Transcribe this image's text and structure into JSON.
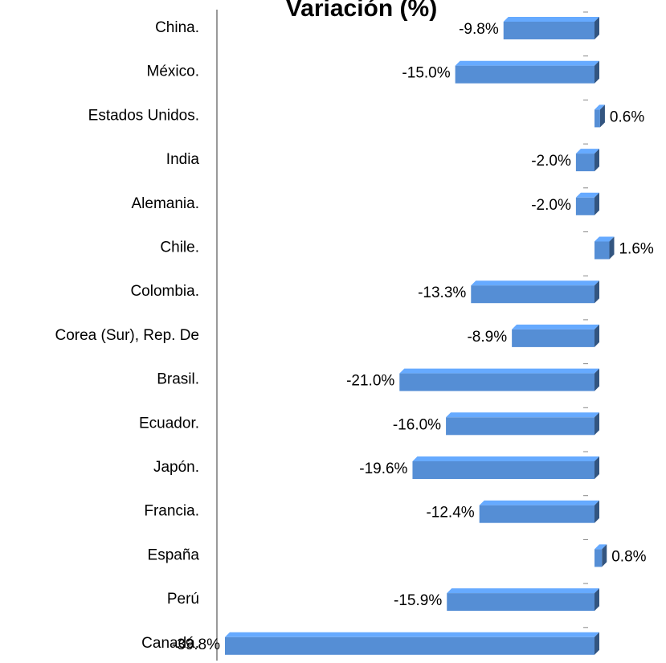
{
  "chart_data": {
    "type": "bar",
    "orientation": "horizontal",
    "title": "Variación (%)",
    "categories": [
      "China.",
      "México.",
      "Estados Unidos.",
      "India",
      "Alemania.",
      "Chile.",
      "Colombia.",
      "Corea (Sur), Rep. De",
      "Brasil.",
      "Ecuador.",
      "Japón.",
      "Francia.",
      "España",
      "Perú",
      "Canadá."
    ],
    "values": [
      -9.8,
      -15.0,
      0.6,
      -2.0,
      -2.0,
      1.6,
      -13.3,
      -8.9,
      -21.0,
      -16.0,
      -19.6,
      -12.4,
      0.8,
      -15.9,
      -39.8
    ],
    "value_labels": [
      "-9.8%",
      "-15.0%",
      "0.6%",
      "-2.0%",
      "-2.0%",
      "1.6%",
      "-13.3%",
      "-8.9%",
      "-21.0%",
      "-16.0%",
      "-19.6%",
      "-12.4%",
      "0.8%",
      "-15.9%",
      "-39.8%"
    ],
    "color": "#558ed5"
  }
}
